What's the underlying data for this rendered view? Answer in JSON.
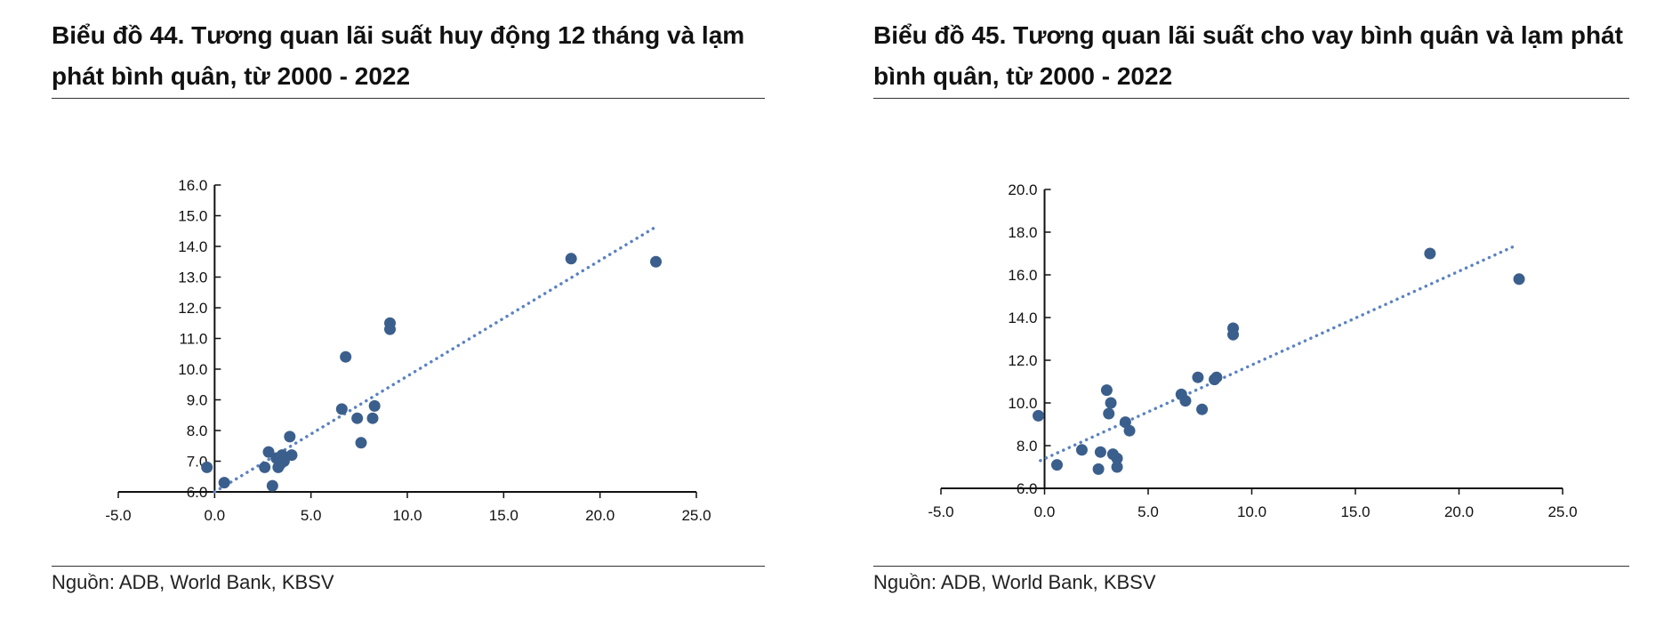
{
  "charts": [
    {
      "title": "Biểu đồ 44. Tương quan lãi suất huy động 12 tháng và lạm phát bình quân, từ 2000 - 2022",
      "source": "Nguồn: ADB, World Bank, KBSV"
    },
    {
      "title": "Biểu đồ 45. Tương quan lãi suất cho vay bình quân và lạm phát bình quân, từ 2000 - 2022",
      "source": "Nguồn: ADB, World Bank, KBSV"
    }
  ],
  "colors": {
    "points": "#3b5f8c",
    "trendline": "#5b82c2",
    "axis": "#111111"
  },
  "chart_data": [
    {
      "type": "scatter",
      "title": "Biểu đồ 44. Tương quan lãi suất huy động 12 tháng và lạm phát bình quân, từ 2000 - 2022",
      "xlabel": "",
      "ylabel": "",
      "xlim": [
        -5,
        25
      ],
      "ylim": [
        6,
        16
      ],
      "x_ticks": [
        -5,
        0,
        5,
        10,
        15,
        20,
        25
      ],
      "y_ticks": [
        6,
        7,
        8,
        9,
        10,
        11,
        12,
        13,
        14,
        15,
        16
      ],
      "tick_decimals": 1,
      "grid": false,
      "legend": "none",
      "x": [
        -0.4,
        0.5,
        2.6,
        2.8,
        3.0,
        3.2,
        3.3,
        3.4,
        3.5,
        3.6,
        3.9,
        4.0,
        6.6,
        6.8,
        7.4,
        7.6,
        8.2,
        8.3,
        9.1,
        9.1,
        18.5,
        22.9
      ],
      "y": [
        6.8,
        6.3,
        6.8,
        7.3,
        6.2,
        7.1,
        6.8,
        6.9,
        7.2,
        7.0,
        7.8,
        7.2,
        8.7,
        10.4,
        8.4,
        7.6,
        8.4,
        8.8,
        11.5,
        11.3,
        13.6,
        13.5
      ],
      "trendline": {
        "style": "dotted",
        "x": [
          0,
          22.8
        ],
        "y": [
          6.0,
          14.6
        ]
      }
    },
    {
      "type": "scatter",
      "title": "Biểu đồ 45. Tương quan lãi suất cho vay bình quân và lạm phát bình quân, từ 2000 - 2022",
      "xlabel": "",
      "ylabel": "",
      "xlim": [
        -5,
        25
      ],
      "ylim": [
        6,
        20
      ],
      "x_ticks": [
        -5,
        0,
        5,
        10,
        15,
        20,
        25
      ],
      "y_ticks": [
        6,
        8,
        10,
        12,
        14,
        16,
        18,
        20
      ],
      "tick_decimals": 1,
      "grid": false,
      "legend": "none",
      "x": [
        -0.3,
        0.6,
        1.8,
        2.6,
        2.7,
        3.0,
        3.1,
        3.2,
        3.3,
        3.5,
        3.5,
        3.9,
        4.1,
        6.6,
        6.8,
        7.4,
        7.6,
        8.2,
        8.3,
        9.1,
        9.1,
        18.6,
        22.9
      ],
      "y": [
        9.4,
        7.1,
        7.8,
        6.9,
        7.7,
        10.6,
        9.5,
        10.0,
        7.6,
        7.0,
        7.4,
        9.1,
        8.7,
        10.4,
        10.1,
        11.2,
        9.7,
        11.1,
        11.2,
        13.5,
        13.2,
        17.0,
        15.8
      ],
      "trendline": {
        "style": "dotted",
        "x": [
          -0.2,
          22.8
        ],
        "y": [
          7.3,
          17.4
        ]
      }
    }
  ]
}
